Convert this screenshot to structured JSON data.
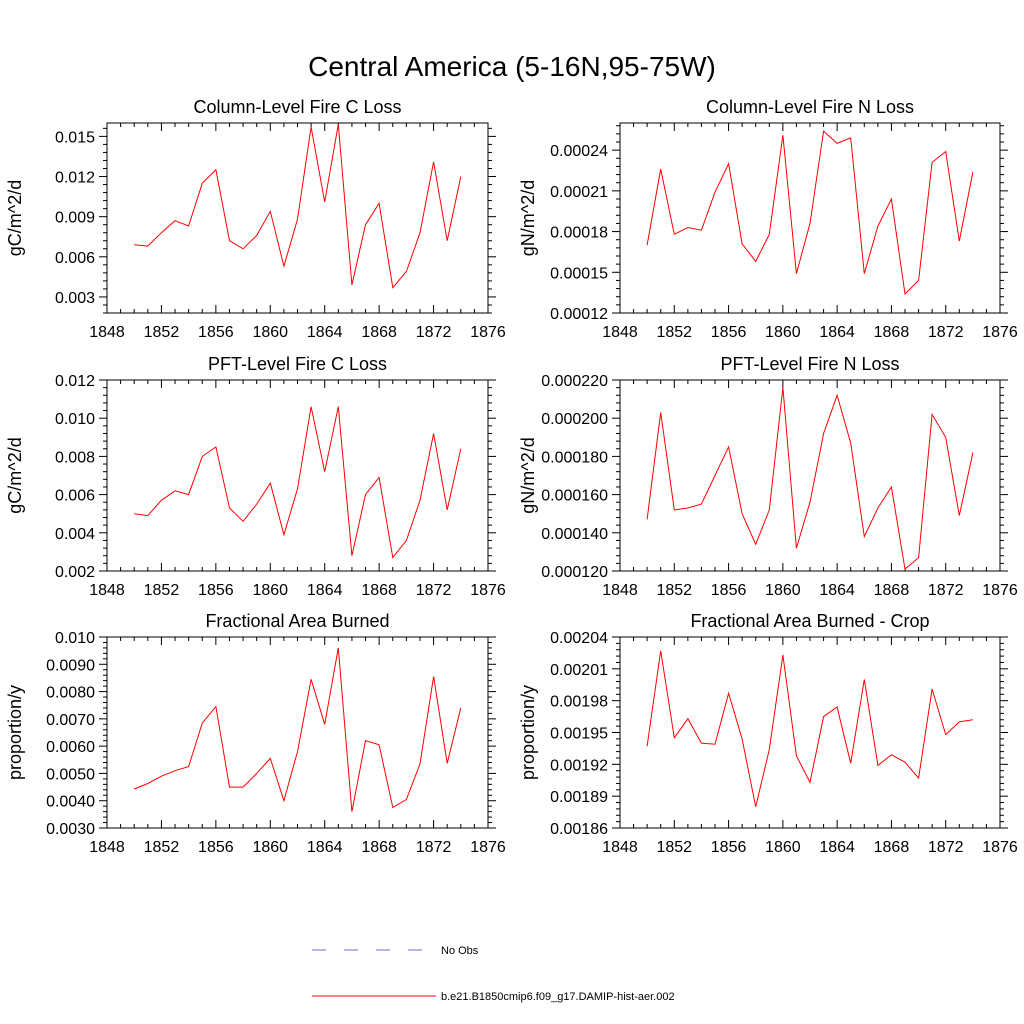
{
  "figure_title": "Central America (5-16N,95-75W)",
  "legend": {
    "obs_label": "No Obs",
    "obs_color": "#6a6ad0",
    "model_label": "b.e21.B1850cmip6.f09_g17.DAMIP-hist-aer.002",
    "model_color": "#ff0000"
  },
  "chart_data": [
    {
      "type": "line",
      "title": "Column-Level Fire C Loss",
      "ylabel": "gC/m^2/d",
      "xlim": [
        1848,
        1876
      ],
      "xticks": [
        1848,
        1852,
        1856,
        1860,
        1864,
        1868,
        1872,
        1876
      ],
      "ylim": [
        0.0018,
        0.016
      ],
      "yticks": [
        0.003,
        0.006,
        0.009,
        0.012,
        0.015
      ],
      "ytick_labels": [
        "0.003",
        "0.006",
        "0.009",
        "0.012",
        "0.015"
      ],
      "x": [
        1850,
        1851,
        1852,
        1853,
        1854,
        1855,
        1856,
        1857,
        1858,
        1859,
        1860,
        1861,
        1862,
        1863,
        1864,
        1865,
        1866,
        1867,
        1868,
        1869,
        1870,
        1871,
        1872,
        1873,
        1874
      ],
      "series": [
        {
          "name": "b.e21.B1850cmip6.f09_g17.DAMIP-hist-aer.002",
          "values": [
            0.0069,
            0.0068,
            0.0078,
            0.0087,
            0.0083,
            0.0115,
            0.0125,
            0.0072,
            0.0066,
            0.0076,
            0.0094,
            0.0053,
            0.0088,
            0.0157,
            0.0101,
            0.0159,
            0.0039,
            0.0084,
            0.01,
            0.0037,
            0.0049,
            0.0078,
            0.0131,
            0.0072,
            0.012
          ]
        }
      ]
    },
    {
      "type": "line",
      "title": "Column-Level Fire N Loss",
      "ylabel": "gN/m^2/d",
      "xlim": [
        1848,
        1876
      ],
      "xticks": [
        1848,
        1852,
        1856,
        1860,
        1864,
        1868,
        1872,
        1876
      ],
      "ylim": [
        0.00012,
        0.00026
      ],
      "yticks": [
        0.00012,
        0.00015,
        0.00018,
        0.00021,
        0.00024
      ],
      "ytick_labels": [
        "0.00012",
        "0.00015",
        "0.00018",
        "0.00021",
        "0.00024"
      ],
      "x": [
        1850,
        1851,
        1852,
        1853,
        1854,
        1855,
        1856,
        1857,
        1858,
        1859,
        1860,
        1861,
        1862,
        1863,
        1864,
        1865,
        1866,
        1867,
        1868,
        1869,
        1870,
        1871,
        1872,
        1873,
        1874
      ],
      "series": [
        {
          "name": "b.e21.B1850cmip6.f09_g17.DAMIP-hist-aer.002",
          "values": [
            0.00017,
            0.000226,
            0.000178,
            0.000183,
            0.000181,
            0.000209,
            0.00023,
            0.000171,
            0.000158,
            0.000178,
            0.000251,
            0.000149,
            0.000186,
            0.000254,
            0.000245,
            0.000249,
            0.000149,
            0.000184,
            0.000204,
            0.000134,
            0.000144,
            0.000231,
            0.000239,
            0.000173,
            0.000224
          ]
        }
      ]
    },
    {
      "type": "line",
      "title": "PFT-Level Fire C Loss",
      "ylabel": "gC/m^2/d",
      "xlim": [
        1848,
        1876
      ],
      "xticks": [
        1848,
        1852,
        1856,
        1860,
        1864,
        1868,
        1872,
        1876
      ],
      "ylim": [
        0.002,
        0.012
      ],
      "yticks": [
        0.002,
        0.004,
        0.006,
        0.008,
        0.01,
        0.012
      ],
      "ytick_labels": [
        "0.002",
        "0.004",
        "0.006",
        "0.008",
        "0.010",
        "0.012"
      ],
      "x": [
        1850,
        1851,
        1852,
        1853,
        1854,
        1855,
        1856,
        1857,
        1858,
        1859,
        1860,
        1861,
        1862,
        1863,
        1864,
        1865,
        1866,
        1867,
        1868,
        1869,
        1870,
        1871,
        1872,
        1873,
        1874
      ],
      "series": [
        {
          "name": "b.e21.B1850cmip6.f09_g17.DAMIP-hist-aer.002",
          "values": [
            0.005,
            0.0049,
            0.0057,
            0.0062,
            0.006,
            0.008,
            0.0085,
            0.0053,
            0.0046,
            0.0055,
            0.0066,
            0.0039,
            0.0063,
            0.0106,
            0.0072,
            0.0106,
            0.0028,
            0.006,
            0.0069,
            0.0027,
            0.0036,
            0.0057,
            0.0092,
            0.0052,
            0.0084
          ]
        }
      ]
    },
    {
      "type": "line",
      "title": "PFT-Level Fire N Loss",
      "ylabel": "gN/m^2/d",
      "xlim": [
        1848,
        1876
      ],
      "xticks": [
        1848,
        1852,
        1856,
        1860,
        1864,
        1868,
        1872,
        1876
      ],
      "ylim": [
        0.00012,
        0.00022
      ],
      "yticks": [
        0.00012,
        0.00014,
        0.00016,
        0.00018,
        0.0002,
        0.00022
      ],
      "ytick_labels": [
        "0.000120",
        "0.000140",
        "0.000160",
        "0.000180",
        "0.000200",
        "0.000220"
      ],
      "x": [
        1850,
        1851,
        1852,
        1853,
        1854,
        1855,
        1856,
        1857,
        1858,
        1859,
        1860,
        1861,
        1862,
        1863,
        1864,
        1865,
        1866,
        1867,
        1868,
        1869,
        1870,
        1871,
        1872,
        1873,
        1874
      ],
      "series": [
        {
          "name": "b.e21.B1850cmip6.f09_g17.DAMIP-hist-aer.002",
          "values": [
            0.000147,
            0.000203,
            0.000152,
            0.000153,
            0.000155,
            0.00017,
            0.000185,
            0.00015,
            0.000134,
            0.000152,
            0.000216,
            0.000132,
            0.000156,
            0.000192,
            0.000212,
            0.000187,
            0.000138,
            0.000153,
            0.000164,
            0.000121,
            0.000127,
            0.000202,
            0.00019,
            0.000149,
            0.000182
          ]
        }
      ]
    },
    {
      "type": "line",
      "title": "Fractional Area Burned",
      "ylabel": "proportion/y",
      "xlim": [
        1848,
        1876
      ],
      "xticks": [
        1848,
        1852,
        1856,
        1860,
        1864,
        1868,
        1872,
        1876
      ],
      "ylim": [
        0.003,
        0.01
      ],
      "yticks": [
        0.003,
        0.004,
        0.005,
        0.006,
        0.007,
        0.008,
        0.009,
        0.01
      ],
      "ytick_labels": [
        "0.0030",
        "0.0040",
        "0.0050",
        "0.0060",
        "0.0070",
        "0.0080",
        "0.0090",
        "0.010"
      ],
      "x": [
        1850,
        1851,
        1852,
        1853,
        1854,
        1855,
        1856,
        1857,
        1858,
        1859,
        1860,
        1861,
        1862,
        1863,
        1864,
        1865,
        1866,
        1867,
        1868,
        1869,
        1870,
        1871,
        1872,
        1873,
        1874
      ],
      "series": [
        {
          "name": "b.e21.B1850cmip6.f09_g17.DAMIP-hist-aer.002",
          "values": [
            0.00443,
            0.00463,
            0.0049,
            0.0051,
            0.00525,
            0.00685,
            0.00745,
            0.0045,
            0.0045,
            0.005,
            0.00555,
            0.004,
            0.0058,
            0.00845,
            0.0068,
            0.0096,
            0.0036,
            0.0062,
            0.00605,
            0.00375,
            0.00405,
            0.00535,
            0.00855,
            0.00537,
            0.0074
          ]
        }
      ]
    },
    {
      "type": "line",
      "title": "Fractional Area Burned - Crop",
      "ylabel": "proportion/y",
      "xlim": [
        1848,
        1876
      ],
      "xticks": [
        1848,
        1852,
        1856,
        1860,
        1864,
        1868,
        1872,
        1876
      ],
      "ylim": [
        0.00186,
        0.00204
      ],
      "yticks": [
        0.00186,
        0.00189,
        0.00192,
        0.00195,
        0.00198,
        0.00201,
        0.00204
      ],
      "ytick_labels": [
        "0.00186",
        "0.00189",
        "0.00192",
        "0.00195",
        "0.00198",
        "0.00201",
        "0.00204"
      ],
      "x": [
        1850,
        1851,
        1852,
        1853,
        1854,
        1855,
        1856,
        1857,
        1858,
        1859,
        1860,
        1861,
        1862,
        1863,
        1864,
        1865,
        1866,
        1867,
        1868,
        1869,
        1870,
        1871,
        1872,
        1873,
        1874
      ],
      "series": [
        {
          "name": "b.e21.B1850cmip6.f09_g17.DAMIP-hist-aer.002",
          "values": [
            0.001937,
            0.002027,
            0.001945,
            0.001963,
            0.00194,
            0.001939,
            0.001987,
            0.001944,
            0.00188,
            0.001934,
            0.002023,
            0.001928,
            0.001903,
            0.001965,
            0.001974,
            0.001921,
            0.002,
            0.001919,
            0.001929,
            0.001922,
            0.001907,
            0.001991,
            0.001948,
            0.00196,
            0.001962
          ]
        }
      ]
    }
  ]
}
